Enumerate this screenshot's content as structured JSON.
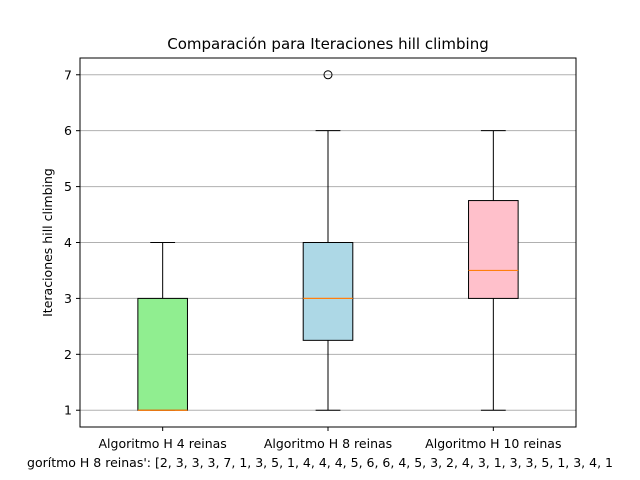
{
  "chart_data": {
    "type": "boxplot",
    "title": "Comparación para Iteraciones hill climbing",
    "ylabel": "Iteraciones hill climbing",
    "xlabel": "gorítmo H 8 reinas': [2, 3, 3, 3, 7, 1, 3, 5, 1, 4, 4, 4, 5, 6, 6, 4, 5, 3, 2, 4, 3, 1, 3, 3, 5, 1, 3, 4, 1",
    "ylim": [
      0.7,
      7.3
    ],
    "yticks": [
      1,
      2,
      3,
      4,
      5,
      6,
      7
    ],
    "grid_y": true,
    "categories": [
      "Algoritmo H 4 reinas",
      "Algoritmo H 8 reinas",
      "Algoritmo H 10 reinas"
    ],
    "boxes": [
      {
        "whisker_low": 1,
        "q1": 1,
        "median": 1,
        "q3": 3,
        "whisker_high": 4,
        "outliers": [],
        "color": "#90ee90"
      },
      {
        "whisker_low": 1,
        "q1": 2.25,
        "median": 3,
        "q3": 4,
        "whisker_high": 6,
        "outliers": [
          7
        ],
        "color": "#add8e6"
      },
      {
        "whisker_low": 1,
        "q1": 3,
        "median": 3.5,
        "q3": 4.75,
        "whisker_high": 6,
        "outliers": [],
        "color": "#ffc0cb"
      }
    ],
    "median_color": "#ff7f0e",
    "grid_color": "#b0b0b0"
  }
}
